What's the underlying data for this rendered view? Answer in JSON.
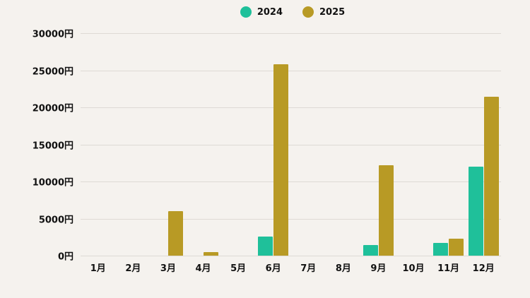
{
  "chart_data": {
    "type": "bar",
    "title": "",
    "xlabel": "",
    "ylabel": "",
    "categories": [
      "1月",
      "2月",
      "3月",
      "4月",
      "5月",
      "6月",
      "7月",
      "8月",
      "9月",
      "10月",
      "11月",
      "12月"
    ],
    "series": [
      {
        "name": "2024",
        "color": "#1fc09a",
        "values": [
          0,
          0,
          0,
          0,
          0,
          2600,
          0,
          0,
          1400,
          0,
          1700,
          12000
        ]
      },
      {
        "name": "2025",
        "color": "#b89a25",
        "values": [
          0,
          0,
          6000,
          500,
          0,
          25800,
          0,
          0,
          12200,
          0,
          2300,
          21400
        ]
      }
    ],
    "ylim": [
      0,
      30000
    ],
    "yticks": [
      0,
      5000,
      10000,
      15000,
      20000,
      25000,
      30000
    ],
    "ytick_labels": [
      "0円",
      "5000円",
      "10000円",
      "15000円",
      "20000円",
      "25000円",
      "30000円"
    ],
    "grid": true,
    "legend_position": "top-center"
  },
  "legend": {
    "items": [
      {
        "label": "2024",
        "color": "#1fc09a"
      },
      {
        "label": "2025",
        "color": "#b89a25"
      }
    ]
  }
}
